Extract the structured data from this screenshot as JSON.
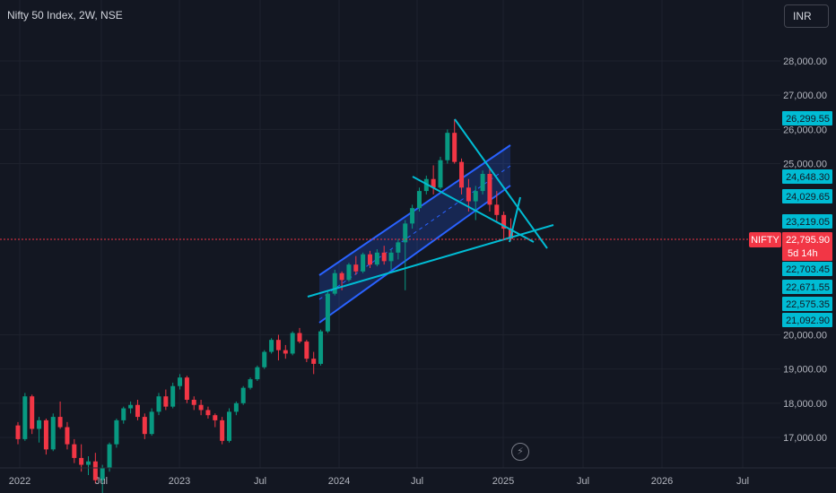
{
  "header": {
    "title": "Nifty 50 Index, 2W, NSE",
    "currency": "INR"
  },
  "colors": {
    "background": "#131722",
    "grid": "#1e222d",
    "up": "#089981",
    "down": "#f23645",
    "channel": "#2962ff",
    "trend": "#00bcd4",
    "price_line": "#f23645"
  },
  "chart_data": {
    "type": "candlestick",
    "interval": "2W",
    "symbol": "NIFTY",
    "ylim": [
      16600,
      29000
    ],
    "y_ticks": [
      "28,000.00",
      "27,000.00",
      "26,000.00",
      "25,000.00",
      "20,000.00",
      "19,000.00",
      "18,000.00",
      "17,000.00"
    ],
    "x_ticks": [
      "2022",
      "Jul",
      "2023",
      "Jul",
      "2024",
      "Jul",
      "2025",
      "Jul",
      "2026",
      "Jul"
    ],
    "current_price": {
      "label": "NIFTY",
      "value": "22,795.90",
      "countdown": "5d 14h"
    },
    "price_tags": [
      {
        "value": "26,299.55"
      },
      {
        "value": "24,648.30"
      },
      {
        "value": "24,029.65"
      },
      {
        "value": "23,219.05"
      },
      {
        "value": "22,703.45"
      },
      {
        "value": "22,671.55"
      },
      {
        "value": "22,575.35"
      },
      {
        "value": "21,092.90"
      }
    ],
    "candles": [
      [
        17350,
        17450,
        16800,
        16950
      ],
      [
        16950,
        18300,
        16900,
        18200
      ],
      [
        18200,
        18250,
        17100,
        17250
      ],
      [
        17250,
        17600,
        16850,
        17500
      ],
      [
        17500,
        17550,
        16500,
        16650
      ],
      [
        16650,
        17700,
        16600,
        17600
      ],
      [
        17600,
        18050,
        17250,
        17300
      ],
      [
        17300,
        17450,
        16650,
        16800
      ],
      [
        16800,
        16950,
        16250,
        16400
      ],
      [
        16400,
        16800,
        16000,
        16200
      ],
      [
        16200,
        16450,
        15900,
        16300
      ],
      [
        16300,
        16550,
        15650,
        15750
      ],
      [
        15750,
        16200,
        15300,
        16100
      ],
      [
        16100,
        16850,
        16000,
        16800
      ],
      [
        16800,
        17550,
        16700,
        17500
      ],
      [
        17500,
        17900,
        17400,
        17850
      ],
      [
        17850,
        18050,
        17700,
        17950
      ],
      [
        17950,
        18100,
        17500,
        17600
      ],
      [
        17600,
        17700,
        16950,
        17100
      ],
      [
        17100,
        17850,
        17050,
        17750
      ],
      [
        17750,
        18300,
        17650,
        18200
      ],
      [
        18200,
        18400,
        17800,
        17900
      ],
      [
        17900,
        18600,
        17850,
        18500
      ],
      [
        18500,
        18850,
        18400,
        18750
      ],
      [
        18750,
        18800,
        18000,
        18100
      ],
      [
        18100,
        18200,
        17800,
        17950
      ],
      [
        17950,
        18100,
        17650,
        17800
      ],
      [
        17800,
        17900,
        17550,
        17650
      ],
      [
        17650,
        17700,
        17300,
        17500
      ],
      [
        17500,
        17600,
        16800,
        16900
      ],
      [
        16900,
        17850,
        16850,
        17750
      ],
      [
        17750,
        18050,
        17650,
        18000
      ],
      [
        18000,
        18500,
        17950,
        18450
      ],
      [
        18450,
        18750,
        18400,
        18700
      ],
      [
        18700,
        19100,
        18650,
        19050
      ],
      [
        19050,
        19550,
        19000,
        19500
      ],
      [
        19500,
        19900,
        19450,
        19850
      ],
      [
        19850,
        20000,
        19250,
        19550
      ],
      [
        19550,
        19700,
        19300,
        19450
      ],
      [
        19450,
        20100,
        19400,
        20050
      ],
      [
        20050,
        20200,
        19750,
        19800
      ],
      [
        19800,
        19850,
        19200,
        19300
      ],
      [
        19300,
        19500,
        18850,
        19150
      ],
      [
        19150,
        20150,
        19100,
        20100
      ],
      [
        20100,
        21300,
        20050,
        21200
      ],
      [
        21200,
        21900,
        21150,
        21800
      ],
      [
        21800,
        21850,
        21300,
        21600
      ],
      [
        21600,
        22100,
        21550,
        22050
      ],
      [
        22050,
        22300,
        21750,
        21850
      ],
      [
        21850,
        22400,
        21800,
        22350
      ],
      [
        22350,
        22450,
        21950,
        22050
      ],
      [
        22050,
        22500,
        22000,
        22400
      ],
      [
        22400,
        22600,
        22050,
        22150
      ],
      [
        22150,
        22500,
        21900,
        22400
      ],
      [
        22400,
        22800,
        22200,
        22700
      ],
      [
        22700,
        23350,
        21300,
        23250
      ],
      [
        23250,
        23800,
        23100,
        23700
      ],
      [
        23700,
        24300,
        23600,
        24200
      ],
      [
        24200,
        24650,
        24100,
        24550
      ],
      [
        24550,
        24950,
        24100,
        24300
      ],
      [
        24300,
        25200,
        24250,
        25100
      ],
      [
        25100,
        26000,
        25000,
        25900
      ],
      [
        25900,
        26300,
        25000,
        25050
      ],
      [
        25050,
        25150,
        24100,
        24300
      ],
      [
        24300,
        24550,
        23600,
        23900
      ],
      [
        23900,
        24350,
        23350,
        24200
      ],
      [
        24200,
        24800,
        24100,
        24700
      ],
      [
        24700,
        24900,
        23600,
        23800
      ],
      [
        23800,
        24200,
        23300,
        23500
      ],
      [
        23500,
        23600,
        22800,
        23100
      ],
      [
        23100,
        23400,
        22750,
        22800
      ]
    ]
  }
}
